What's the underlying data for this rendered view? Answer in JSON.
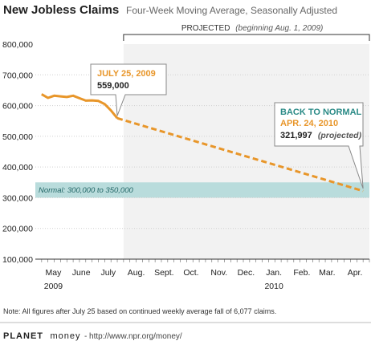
{
  "header": {
    "title": "New Jobless Claims",
    "subtitle": "Four-Week Moving Average, Seasonally Adjusted"
  },
  "projection": {
    "label": "PROJECTED",
    "label_detail": "(beginning Aug. 1, 2009)"
  },
  "normal_band": {
    "label": "Normal: 300,000 to 350,000",
    "low": 300000,
    "high": 350000,
    "color": "#b9dcdc"
  },
  "callouts": {
    "current": {
      "date": "JULY 25, 2009",
      "value": "559,000"
    },
    "normal": {
      "heading": "BACK TO NORMAL",
      "date": "APR. 24, 2010",
      "value": "321,997",
      "qualifier": "(projected)"
    }
  },
  "footnote": "Note: All figures after July 25 based on continued weekly average fall of 6,077 claims.",
  "branding": {
    "name_bold": "PLANET",
    "name_light": "money",
    "separator": " - ",
    "url": "http://www.npr.org/money/"
  },
  "chart_data": {
    "type": "line",
    "ylim": [
      100000,
      800000
    ],
    "y_ticks": [
      100000,
      200000,
      300000,
      400000,
      500000,
      600000,
      700000,
      800000
    ],
    "y_tick_labels": [
      "100,000",
      "200,000",
      "300,000",
      "400,000",
      "500,000",
      "600,000",
      "700,000",
      "800,000"
    ],
    "x_range": [
      "2009-04-25",
      "2010-05-01"
    ],
    "x_tick_labels": [
      {
        "label": "May",
        "date": "2009-05-15"
      },
      {
        "label": "June",
        "date": "2009-06-15"
      },
      {
        "label": "July",
        "date": "2009-07-15"
      },
      {
        "label": "Aug.",
        "date": "2009-08-15"
      },
      {
        "label": "Sept.",
        "date": "2009-09-15"
      },
      {
        "label": "Oct.",
        "date": "2009-10-15"
      },
      {
        "label": "Nov.",
        "date": "2009-11-15"
      },
      {
        "label": "Dec.",
        "date": "2009-12-15"
      },
      {
        "label": "Jan.",
        "date": "2010-01-15"
      },
      {
        "label": "Feb.",
        "date": "2010-02-15"
      },
      {
        "label": "Mar.",
        "date": "2010-03-15"
      },
      {
        "label": "Apr.",
        "date": "2010-04-15"
      }
    ],
    "x_year_labels": [
      {
        "label": "2009",
        "date": "2009-05-15"
      },
      {
        "label": "2010",
        "date": "2010-01-15"
      }
    ],
    "projection_start": "2009-08-01",
    "series": [
      {
        "style": "solid",
        "color": "#e8962a",
        "points": [
          {
            "x": "2009-05-02",
            "y": 637000
          },
          {
            "x": "2009-05-09",
            "y": 625000
          },
          {
            "x": "2009-05-16",
            "y": 632000
          },
          {
            "x": "2009-05-23",
            "y": 630000
          },
          {
            "x": "2009-05-30",
            "y": 628000
          },
          {
            "x": "2009-06-06",
            "y": 632000
          },
          {
            "x": "2009-06-13",
            "y": 624000
          },
          {
            "x": "2009-06-20",
            "y": 616000
          },
          {
            "x": "2009-06-27",
            "y": 617000
          },
          {
            "x": "2009-07-04",
            "y": 615000
          },
          {
            "x": "2009-07-11",
            "y": 605000
          },
          {
            "x": "2009-07-18",
            "y": 584000
          },
          {
            "x": "2009-07-25",
            "y": 559000
          }
        ]
      },
      {
        "style": "dashed",
        "color": "#e8962a",
        "points": [
          {
            "x": "2009-07-25",
            "y": 559000
          },
          {
            "x": "2010-04-24",
            "y": 321997
          }
        ]
      }
    ]
  }
}
